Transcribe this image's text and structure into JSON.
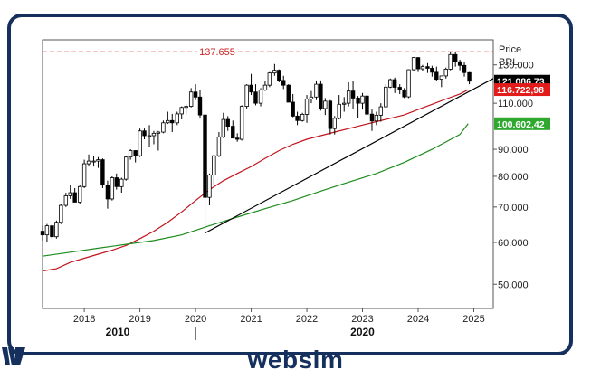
{
  "header": {
    "price_label": "Price",
    "currency_label": "BRL"
  },
  "brand": {
    "name": "websim",
    "color": "#16305e"
  },
  "chart_data": {
    "type": "candlestick",
    "title": "",
    "frequency": "monthly",
    "x_ticks": [
      "2018",
      "2019",
      "2020",
      "2021",
      "2022",
      "2023",
      "2024",
      "2025"
    ],
    "x_range": [
      2017.25,
      2025.35
    ],
    "y_ticks": [
      "130.000",
      "110.000",
      "90.000",
      "80.000",
      "70.000",
      "60.000",
      "50.000"
    ],
    "y_range": [
      45000,
      145000
    ],
    "y_scale": "log",
    "grid": false,
    "decade_labels": [
      {
        "text": "2010",
        "year": 2018.6
      },
      {
        "text": "2020",
        "year": 2023.0
      }
    ],
    "decade_marker_year": 2020.0,
    "horizontal_line": {
      "value": 137655,
      "label": "137.655",
      "color": "#cc2222"
    },
    "price_tags": [
      {
        "label": "121.086,73",
        "value": 121086.73,
        "bg": "#000000",
        "fg": "#ffffff"
      },
      {
        "label": "116.722,98",
        "value": 116722.98,
        "bg": "#e21b1b",
        "fg": "#ffffff"
      },
      {
        "label": "100.602,42",
        "value": 100602.42,
        "bg": "#2ea82e",
        "fg": "#ffffff"
      }
    ],
    "trendline": {
      "from": [
        2020.17,
        62500
      ],
      "to": [
        2025.35,
        122500
      ],
      "color": "#000000"
    },
    "ma_series": [
      {
        "color": "#c0141c",
        "points": [
          [
            2017.25,
            53000
          ],
          [
            2017.5,
            53500
          ],
          [
            2017.75,
            55000
          ],
          [
            2018.0,
            56000
          ],
          [
            2018.25,
            57000
          ],
          [
            2018.5,
            58000
          ],
          [
            2018.75,
            59200
          ],
          [
            2019.0,
            61000
          ],
          [
            2019.25,
            63000
          ],
          [
            2019.5,
            65500
          ],
          [
            2019.75,
            68500
          ],
          [
            2020.0,
            72000
          ],
          [
            2020.25,
            75500
          ],
          [
            2020.5,
            78500
          ],
          [
            2020.75,
            81000
          ],
          [
            2021.0,
            83500
          ],
          [
            2021.25,
            86500
          ],
          [
            2021.5,
            89500
          ],
          [
            2021.75,
            92000
          ],
          [
            2022.0,
            94000
          ],
          [
            2022.25,
            95500
          ],
          [
            2022.5,
            97000
          ],
          [
            2022.75,
            98500
          ],
          [
            2023.0,
            100000
          ],
          [
            2023.25,
            101500
          ],
          [
            2023.5,
            103000
          ],
          [
            2023.75,
            104500
          ],
          [
            2024.0,
            107000
          ],
          [
            2024.25,
            109500
          ],
          [
            2024.5,
            112000
          ],
          [
            2024.75,
            114500
          ],
          [
            2024.9,
            116700
          ]
        ]
      },
      {
        "color": "#1d8c1d",
        "points": [
          [
            2017.25,
            56500
          ],
          [
            2017.75,
            57500
          ],
          [
            2018.25,
            58500
          ],
          [
            2018.75,
            59500
          ],
          [
            2019.25,
            60500
          ],
          [
            2019.75,
            62000
          ],
          [
            2020.25,
            64500
          ],
          [
            2020.75,
            67000
          ],
          [
            2021.25,
            69500
          ],
          [
            2021.75,
            72000
          ],
          [
            2022.25,
            75000
          ],
          [
            2022.75,
            78000
          ],
          [
            2023.25,
            81000
          ],
          [
            2023.75,
            85000
          ],
          [
            2024.25,
            90000
          ],
          [
            2024.75,
            96000
          ],
          [
            2024.9,
            100600
          ]
        ]
      }
    ],
    "candles": [
      [
        2017.25,
        63000,
        64500,
        60500,
        62000
      ],
      [
        2017.33,
        62000,
        65000,
        60000,
        64500
      ],
      [
        2017.42,
        64500,
        65000,
        60500,
        61500
      ],
      [
        2017.5,
        61500,
        66000,
        61000,
        65500
      ],
      [
        2017.58,
        65500,
        71000,
        65000,
        70500
      ],
      [
        2017.67,
        70500,
        74500,
        70000,
        73500
      ],
      [
        2017.75,
        73500,
        77000,
        72500,
        74500
      ],
      [
        2017.83,
        74500,
        76000,
        71500,
        71500
      ],
      [
        2017.92,
        71500,
        77000,
        71000,
        76500
      ],
      [
        2018.0,
        76500,
        86000,
        76000,
        84500
      ],
      [
        2018.08,
        84500,
        88000,
        83500,
        85500
      ],
      [
        2018.17,
        85500,
        87500,
        83500,
        85500
      ],
      [
        2018.25,
        85500,
        87000,
        83000,
        86000
      ],
      [
        2018.33,
        86000,
        86500,
        76000,
        77000
      ],
      [
        2018.42,
        77000,
        78500,
        69500,
        72500
      ],
      [
        2018.5,
        72500,
        80000,
        72000,
        79500
      ],
      [
        2018.58,
        79500,
        81000,
        75500,
        76500
      ],
      [
        2018.67,
        76500,
        79500,
        74500,
        79000
      ],
      [
        2018.75,
        79000,
        87500,
        78500,
        87000
      ],
      [
        2018.83,
        87000,
        90000,
        86000,
        89500
      ],
      [
        2018.92,
        89500,
        89500,
        85000,
        87500
      ],
      [
        2019.0,
        87500,
        98500,
        87000,
        97500
      ],
      [
        2019.08,
        97500,
        98500,
        94000,
        95500
      ],
      [
        2019.17,
        95500,
        100000,
        91000,
        95500
      ],
      [
        2019.25,
        95500,
        97500,
        92000,
        96500
      ],
      [
        2019.33,
        96500,
        97500,
        89500,
        97000
      ],
      [
        2019.42,
        97000,
        102000,
        96500,
        101000
      ],
      [
        2019.5,
        101000,
        106000,
        100500,
        102000
      ],
      [
        2019.58,
        102000,
        105000,
        97000,
        101000
      ],
      [
        2019.67,
        101000,
        106000,
        100000,
        105000
      ],
      [
        2019.75,
        105000,
        108500,
        102500,
        108000
      ],
      [
        2019.83,
        108000,
        109500,
        105000,
        108500
      ],
      [
        2019.92,
        108500,
        117500,
        108000,
        115500
      ],
      [
        2020.0,
        115500,
        119500,
        111500,
        113000
      ],
      [
        2020.08,
        113000,
        116500,
        103000,
        104500
      ],
      [
        2020.17,
        104500,
        105000,
        62500,
        73000
      ],
      [
        2020.25,
        73000,
        81000,
        70500,
        80500
      ],
      [
        2020.33,
        80500,
        88000,
        77000,
        87500
      ],
      [
        2020.42,
        87500,
        97000,
        87000,
        95000
      ],
      [
        2020.5,
        95000,
        105500,
        94500,
        102500
      ],
      [
        2020.58,
        102500,
        104000,
        97500,
        99500
      ],
      [
        2020.67,
        99500,
        102000,
        94500,
        94500
      ],
      [
        2020.75,
        94500,
        96500,
        93000,
        94000
      ],
      [
        2020.83,
        94000,
        109000,
        93500,
        108500
      ],
      [
        2020.92,
        108500,
        119500,
        107500,
        119000
      ],
      [
        2021.0,
        119000,
        125000,
        114000,
        115500
      ],
      [
        2021.08,
        115500,
        119500,
        109000,
        110000
      ],
      [
        2021.17,
        110000,
        117500,
        108500,
        116500
      ],
      [
        2021.25,
        116500,
        121000,
        116000,
        119000
      ],
      [
        2021.33,
        119000,
        126000,
        118000,
        125500
      ],
      [
        2021.42,
        125500,
        130500,
        124000,
        127000
      ],
      [
        2021.5,
        127000,
        127500,
        120500,
        121500
      ],
      [
        2021.58,
        121500,
        124000,
        117000,
        119000
      ],
      [
        2021.67,
        119000,
        119500,
        110500,
        110500
      ],
      [
        2021.75,
        110500,
        114500,
        103500,
        104000
      ],
      [
        2021.83,
        104000,
        106000,
        100000,
        102000
      ],
      [
        2021.92,
        102000,
        105500,
        101500,
        104800
      ],
      [
        2022.0,
        104800,
        114000,
        101000,
        112000
      ],
      [
        2022.08,
        112000,
        116000,
        110000,
        113000
      ],
      [
        2022.17,
        113000,
        121500,
        111500,
        119500
      ],
      [
        2022.25,
        119500,
        121500,
        106500,
        107500
      ],
      [
        2022.33,
        107500,
        112500,
        104500,
        111000
      ],
      [
        2022.42,
        111000,
        111500,
        96000,
        98500
      ],
      [
        2022.5,
        98500,
        104000,
        96000,
        103000
      ],
      [
        2022.58,
        103000,
        114000,
        102500,
        109500
      ],
      [
        2022.67,
        109500,
        113000,
        106000,
        110000
      ],
      [
        2022.75,
        110000,
        120500,
        108500,
        116000
      ],
      [
        2022.83,
        116000,
        121000,
        107500,
        112500
      ],
      [
        2022.92,
        112500,
        113500,
        103000,
        110000
      ],
      [
        2023.0,
        110000,
        115000,
        107000,
        113500
      ],
      [
        2023.08,
        113500,
        114000,
        104000,
        104900
      ],
      [
        2023.17,
        104900,
        107000,
        97500,
        101800
      ],
      [
        2023.25,
        101800,
        106000,
        100000,
        104400
      ],
      [
        2023.33,
        104400,
        110000,
        101500,
        108300
      ],
      [
        2023.42,
        108300,
        119500,
        108000,
        118000
      ],
      [
        2023.5,
        118000,
        122500,
        117500,
        121900
      ],
      [
        2023.58,
        121900,
        123000,
        115000,
        117900
      ],
      [
        2023.67,
        117900,
        119500,
        114500,
        116600
      ],
      [
        2023.75,
        116600,
        117500,
        112500,
        113100
      ],
      [
        2023.83,
        113100,
        127500,
        112500,
        127300
      ],
      [
        2023.92,
        127300,
        134500,
        126500,
        134200
      ],
      [
        2024.0,
        134200,
        134500,
        126000,
        127800
      ],
      [
        2024.08,
        127800,
        130000,
        126500,
        129000
      ],
      [
        2024.17,
        129000,
        131000,
        125500,
        128100
      ],
      [
        2024.25,
        128100,
        129500,
        123500,
        125900
      ],
      [
        2024.33,
        125900,
        129000,
        121000,
        122100
      ],
      [
        2024.42,
        122100,
        124000,
        118000,
        123900
      ],
      [
        2024.5,
        123900,
        128500,
        122500,
        127600
      ],
      [
        2024.58,
        127600,
        137500,
        127000,
        136000
      ],
      [
        2024.67,
        136000,
        137500,
        129000,
        131800
      ],
      [
        2024.75,
        131800,
        133000,
        127000,
        129700
      ],
      [
        2024.83,
        129700,
        131500,
        123500,
        125700
      ],
      [
        2024.92,
        125700,
        126000,
        119500,
        121087
      ]
    ]
  }
}
